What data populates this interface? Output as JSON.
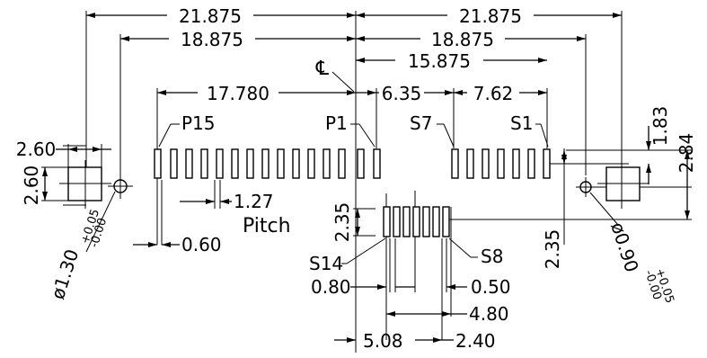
{
  "dimensions": {
    "d_21875_left": "21.875",
    "d_21875_right": "21.875",
    "d_18875_left": "18.875",
    "d_18875_right": "18.875",
    "d_15875": "15.875",
    "d_17780": "17.780",
    "d_635": "6.35",
    "d_762": "7.62",
    "d_183": "1.83",
    "d_284": "2.84",
    "d_260_h": "2.60",
    "d_260_v": "2.60",
    "d_235_left": "2.35",
    "d_235_right": "2.35",
    "d_127": "1.27",
    "d_060": "0.60",
    "d_080": "0.80",
    "d_050": "0.50",
    "d_480": "4.80",
    "d_508": "5.08",
    "d_240": "2.40",
    "hole_left_main": "ø1.30",
    "hole_left_tol_plus": "+0.05",
    "hole_left_tol_minus": "-0.00",
    "hole_right_main": "ø0.90",
    "hole_right_tol_plus": "+0.05",
    "hole_right_tol_minus": "-0.00"
  },
  "labels": {
    "pitch": "Pitch",
    "centerline": "℄",
    "p15": "P15",
    "p1": "P1",
    "s7": "S7",
    "s1": "S1",
    "s14": "S14",
    "s8": "S8"
  }
}
